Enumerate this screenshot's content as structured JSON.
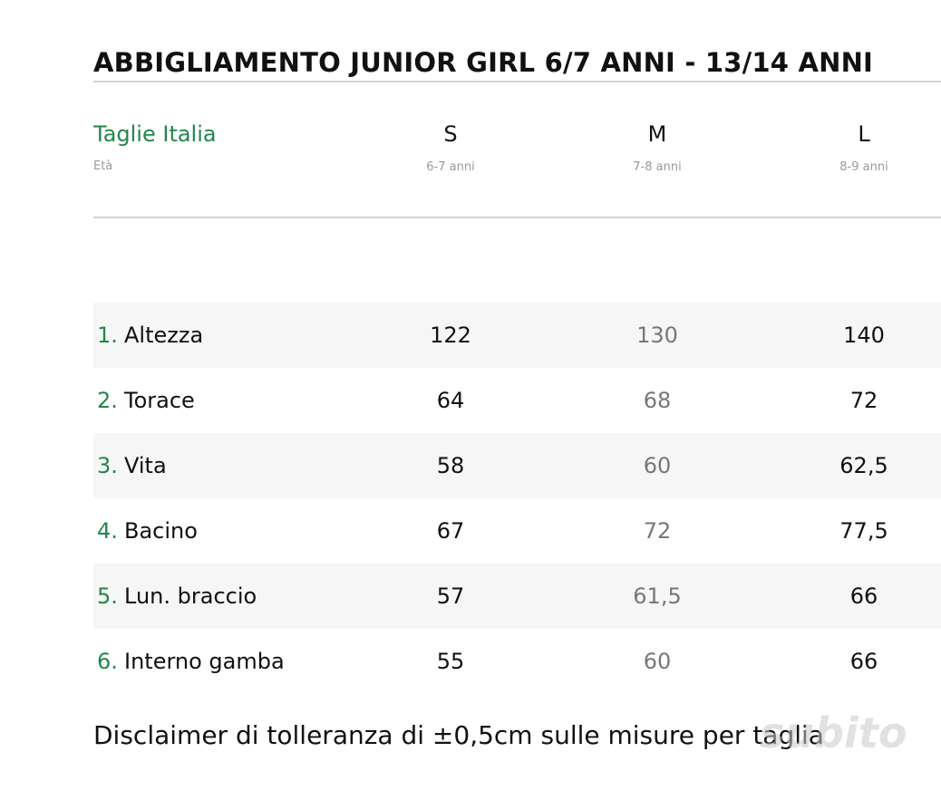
{
  "header": {
    "title": "ABBIGLIAMENTO JUNIOR GIRL 6/7 ANNI - 13/14 ANNI"
  },
  "table": {
    "size_label": "Taglie Italia",
    "age_label": "Età",
    "columns": [
      {
        "size": "S",
        "age": "6-7 anni"
      },
      {
        "size": "M",
        "age": "7-8 anni"
      },
      {
        "size": "L",
        "age": "8-9 anni"
      }
    ],
    "rows": [
      {
        "number": "1.",
        "label": "Altezza",
        "values": [
          "122",
          "130",
          "140"
        ]
      },
      {
        "number": "2.",
        "label": "Torace",
        "values": [
          "64",
          "68",
          "72"
        ]
      },
      {
        "number": "3.",
        "label": "Vita",
        "values": [
          "58",
          "60",
          "62,5"
        ]
      },
      {
        "number": "4.",
        "label": "Bacino",
        "values": [
          "67",
          "72",
          "77,5"
        ]
      },
      {
        "number": "5.",
        "label": "Lun. braccio",
        "values": [
          "57",
          "61,5",
          "66"
        ]
      },
      {
        "number": "6.",
        "label": "Interno gamba",
        "values": [
          "55",
          "60",
          "66"
        ]
      }
    ]
  },
  "footer": {
    "disclaimer": "Disclaimer di tolleranza di ±0,5cm sulle misure per taglia"
  },
  "watermark": "subito"
}
